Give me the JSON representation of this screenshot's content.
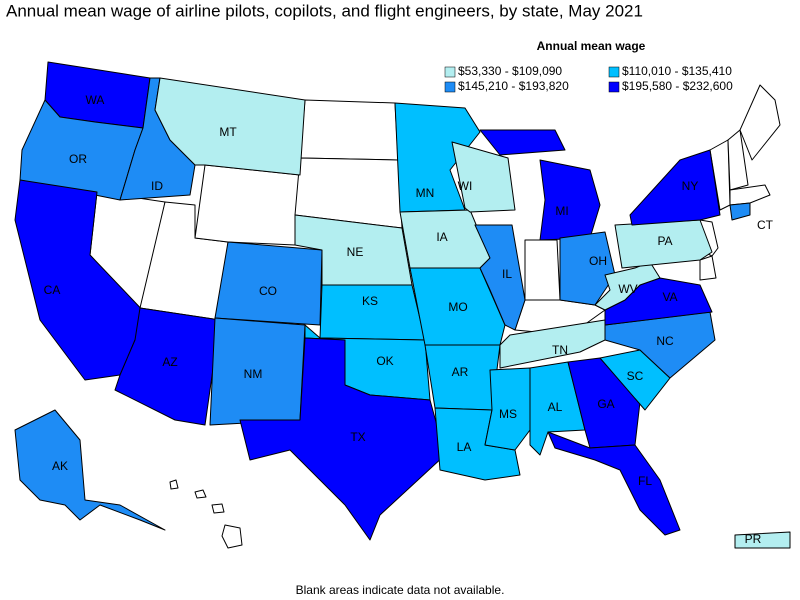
{
  "title": "Annual mean wage of airline pilots, copilots, and flight engineers, by state, May 2021",
  "legend": {
    "title": "Annual mean wage",
    "items": [
      {
        "label": "$53,330 - $109,090",
        "color": "#b3eef0"
      },
      {
        "label": "$110,010 - $135,410",
        "color": "#00bfff"
      },
      {
        "label": "$145,210 - $193,820",
        "color": "#1e8cf5"
      },
      {
        "label": "$195,580 - $232,600",
        "color": "#0000ff"
      }
    ]
  },
  "states": [
    {
      "label": "WA",
      "class": 3
    },
    {
      "label": "OR",
      "class": 2
    },
    {
      "label": "CA",
      "class": 3
    },
    {
      "label": "ID",
      "class": 2
    },
    {
      "label": "MT",
      "class": 0
    },
    {
      "label": "AZ",
      "class": 3
    },
    {
      "label": "CO",
      "class": 2
    },
    {
      "label": "NM",
      "class": 2
    },
    {
      "label": "NE",
      "class": 0
    },
    {
      "label": "KS",
      "class": 1
    },
    {
      "label": "OK",
      "class": 1
    },
    {
      "label": "TX",
      "class": 3
    },
    {
      "label": "MN",
      "class": 1
    },
    {
      "label": "IA",
      "class": 0
    },
    {
      "label": "MO",
      "class": 1
    },
    {
      "label": "AR",
      "class": 1
    },
    {
      "label": "LA",
      "class": 1
    },
    {
      "label": "WI",
      "class": 0
    },
    {
      "label": "IL",
      "class": 2
    },
    {
      "label": "MI",
      "class": 3
    },
    {
      "label": "OH",
      "class": 2
    },
    {
      "label": "TN",
      "class": 0
    },
    {
      "label": "MS",
      "class": 1
    },
    {
      "label": "AL",
      "class": 1
    },
    {
      "label": "GA",
      "class": 3
    },
    {
      "label": "FL",
      "class": 3
    },
    {
      "label": "SC",
      "class": 1
    },
    {
      "label": "NC",
      "class": 2
    },
    {
      "label": "VA",
      "class": 3
    },
    {
      "label": "WV",
      "class": 0
    },
    {
      "label": "PA",
      "class": 0
    },
    {
      "label": "NY",
      "class": 3
    },
    {
      "label": "CT",
      "class": 2
    },
    {
      "label": "AK",
      "class": 2
    },
    {
      "label": "PR",
      "class": 0
    }
  ],
  "footnote": "Blank areas indicate data not available."
}
